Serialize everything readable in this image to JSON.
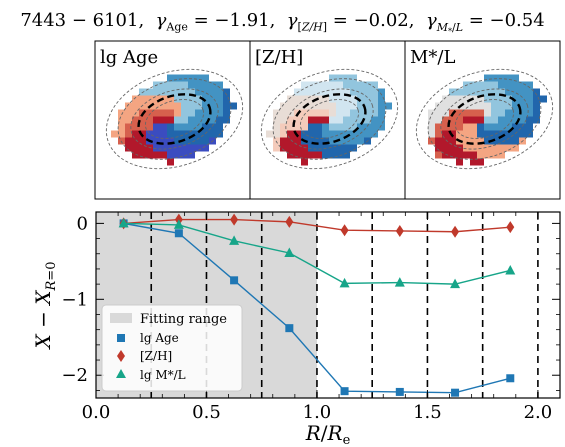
{
  "title": "7443 − 6101,  γ_Age = −1.91,  γ_[Z/H] = −0.02,  γ_M*/L = −0.54",
  "maps": [
    {
      "label": "lg Age",
      "palette": [
        "#b2182b",
        "#d6604d",
        "#f4a582",
        "#92c5de",
        "#4393c3",
        "#2166ac",
        "#3b4cc0"
      ]
    },
    {
      "label": "[Z/H]",
      "palette": [
        "#b2182b",
        "#f4cbbb",
        "#e8ddd6",
        "#d1e5f0",
        "#92c5de",
        "#4393c3",
        "#2166ac"
      ]
    },
    {
      "label": "M*/L",
      "palette": [
        "#b2182b",
        "#d6604d",
        "#e0e0e0",
        "#92c5de",
        "#4393c3",
        "#2166ac",
        "#f4a582"
      ]
    }
  ],
  "chart_data": {
    "type": "line",
    "xlabel": "R/R_e",
    "ylabel": "X − X_R=0",
    "xlim": [
      0.0,
      2.1
    ],
    "ylim": [
      -2.3,
      0.15
    ],
    "xticks": [
      "0.0",
      "0.5",
      "1.0",
      "1.5",
      "2.0"
    ],
    "yticks": [
      "0",
      "−1",
      "−2"
    ],
    "fitting_range": [
      0.0,
      1.0
    ],
    "bin_edges": [
      0.25,
      0.5,
      0.75,
      1.0,
      1.25,
      1.5,
      1.75,
      2.0
    ],
    "x": [
      0.125,
      0.375,
      0.625,
      0.875,
      1.125,
      1.375,
      1.625,
      1.875
    ],
    "series": [
      {
        "name": "lg Age",
        "color": "#1f77b4",
        "marker": "square",
        "values": [
          0.0,
          -0.13,
          -0.75,
          -1.38,
          -2.21,
          -2.22,
          -2.23,
          -2.04
        ]
      },
      {
        "name": "[Z/H]",
        "color": "#c0392b",
        "marker": "diamond",
        "values": [
          0.0,
          0.05,
          0.05,
          0.02,
          -0.09,
          -0.1,
          -0.11,
          -0.05
        ]
      },
      {
        "name": "lg M*/L",
        "color": "#17a589",
        "marker": "triangle",
        "values": [
          0.0,
          -0.02,
          -0.23,
          -0.39,
          -0.79,
          -0.78,
          -0.8,
          -0.62
        ]
      }
    ],
    "legend": {
      "placement": "lower-left",
      "entries": [
        "Fitting range",
        "lg Age",
        "[Z/H]",
        "lg M*/L"
      ]
    }
  }
}
